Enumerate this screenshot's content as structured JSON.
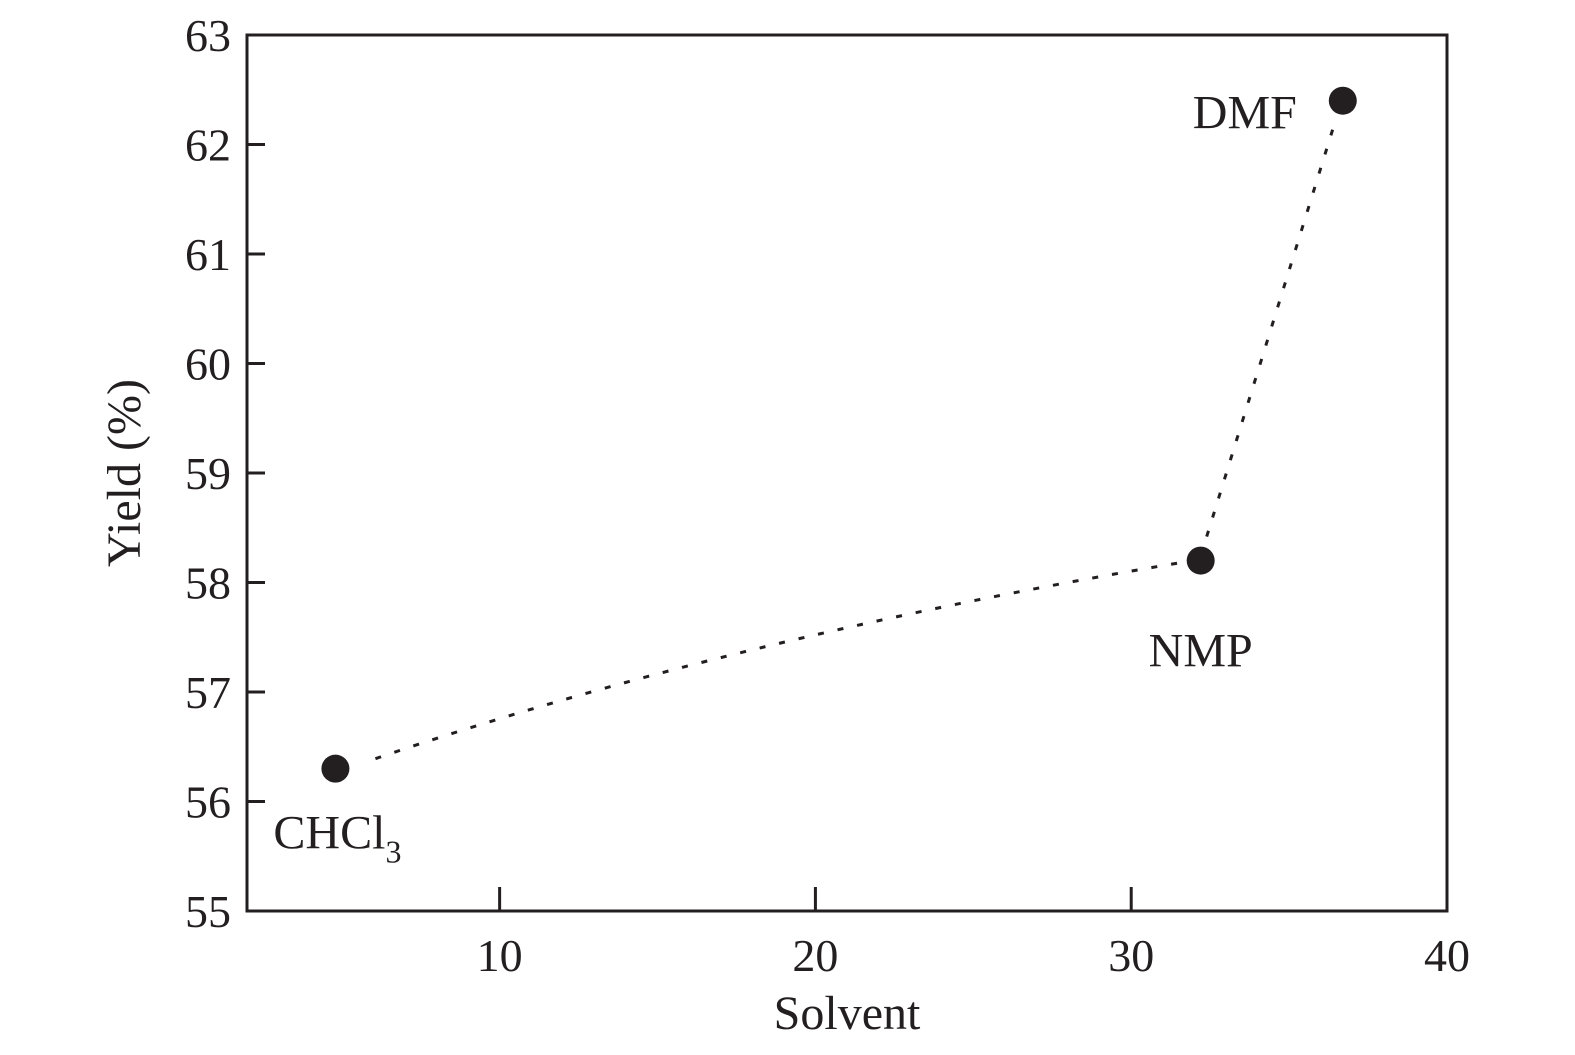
{
  "chart_data": {
    "type": "scatter",
    "title": "",
    "xlabel": "Solvent",
    "ylabel": "Yield (%)",
    "xlim": [
      2,
      40
    ],
    "ylim": [
      55,
      63
    ],
    "xticks": [
      10,
      20,
      30,
      40
    ],
    "yticks": [
      55,
      56,
      57,
      58,
      59,
      60,
      61,
      62,
      63
    ],
    "grid": false,
    "connector": "dotted line",
    "marker_color": "#231f20",
    "points": [
      {
        "label": "CHCl",
        "label_subscript": "3",
        "x": 4.8,
        "y": 56.3
      },
      {
        "label": "NMP",
        "x": 32.2,
        "y": 58.2
      },
      {
        "label": "DMF",
        "x": 36.7,
        "y": 62.4
      }
    ]
  }
}
